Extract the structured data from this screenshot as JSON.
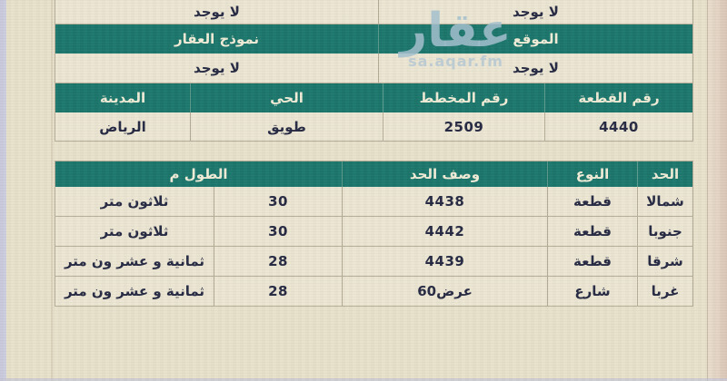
{
  "watermark": {
    "logo_text": "عقار",
    "site_text": "sa.aqar.fm"
  },
  "property_table": {
    "none_top": {
      "right": "لا يوجد",
      "left": "لا يوجد"
    },
    "section_headers": {
      "location": "الموقع",
      "model": "نموذج العقار"
    },
    "none_mid": {
      "right": "لا يوجد",
      "left": "لا يوجد"
    },
    "columns": {
      "piece_no": "رقم القطعة",
      "plan_no": "رقم المخطط",
      "district": "الحي",
      "city": "المدينة"
    },
    "values": {
      "piece_no": "4440",
      "plan_no": "2509",
      "district": "طويق",
      "city": "الرياض"
    }
  },
  "boundaries_table": {
    "columns": {
      "side": "الحد",
      "type": "النوع",
      "description": "وصف الحد",
      "length": "الطول م"
    },
    "rows": [
      {
        "side": "شمالا",
        "type": "قطعة",
        "description": "4438",
        "length_value": "30",
        "length_text": "ثلاثون متر"
      },
      {
        "side": "جنوبا",
        "type": "قطعة",
        "description": "4442",
        "length_value": "30",
        "length_text": "ثلاثون متر"
      },
      {
        "side": "شرقا",
        "type": "قطعة",
        "description": "4439",
        "length_value": "28",
        "length_text": "ثمانية و عشر ون متر"
      },
      {
        "side": "غربا",
        "type": "شارع",
        "description": "عرض60",
        "length_value": "28",
        "length_text": "ثمانية و عشر ون متر"
      }
    ]
  },
  "colors": {
    "header_green": "#1a766c",
    "page_bg": "#e8e1cb",
    "text_dark": "#242842",
    "watermark_blue": "#a5c0ce"
  }
}
